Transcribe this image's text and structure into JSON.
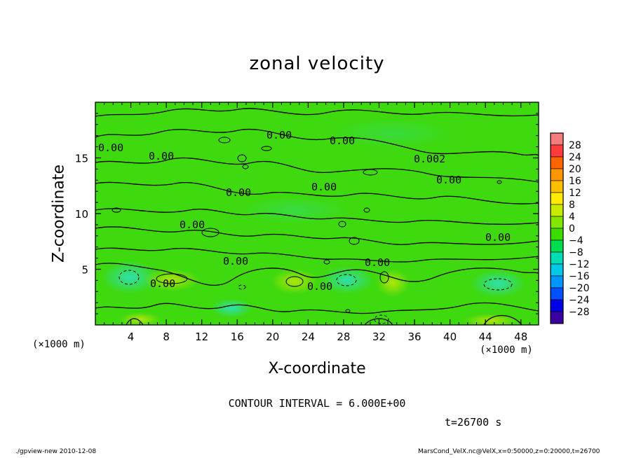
{
  "chart_data": {
    "type": "heatmap",
    "title": "zonal velocity",
    "xlabel": "X-coordinate",
    "ylabel": "Z-coordinate",
    "x_unit_left": "(×1000 m)",
    "x_unit_right": "(×1000 m)",
    "xlim": [
      0,
      50
    ],
    "ylim": [
      0,
      20
    ],
    "xticks": [
      4,
      8,
      12,
      16,
      20,
      24,
      28,
      32,
      36,
      40,
      44,
      48
    ],
    "yticks": [
      5,
      10,
      15
    ],
    "colorbar": {
      "labels": [
        "28",
        "24",
        "20",
        "16",
        "12",
        "8",
        "4",
        "0",
        "−4",
        "−8",
        "−12",
        "−16",
        "−20",
        "−24",
        "−28"
      ],
      "colors": [
        "#f37d7d",
        "#ff3c3c",
        "#ff6400",
        "#ff9600",
        "#ffbe00",
        "#ffeb00",
        "#c8eb00",
        "#82e600",
        "#3cdc00",
        "#00dc50",
        "#00dcb4",
        "#00c8e6",
        "#0096ff",
        "#0050ff",
        "#0000e6",
        "#3c00a0"
      ]
    },
    "contour_labels": [
      "0.00",
      "0.00",
      "0.00",
      "0.00",
      "0.002",
      "0.00",
      "0.00",
      "0.00",
      "0.00",
      "0.00",
      "0.00",
      "0.00",
      "0.00",
      "0.00"
    ],
    "contour_interval": "CONTOUR INTERVAL = 6.000E+00",
    "time": "t=26700 s"
  },
  "footer": {
    "left": "./gpview-new  2010-12-08",
    "right": "MarsCond_VelX.nc@VelX,x=0:50000,z=0:20000,t=26700"
  }
}
